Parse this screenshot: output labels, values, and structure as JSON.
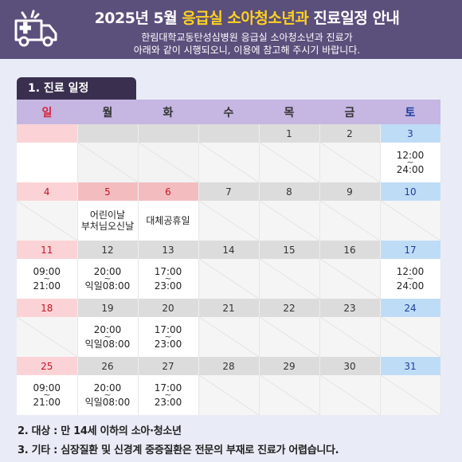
{
  "header": {
    "title_pre": "2025년 5월 ",
    "title_highlight": "응급실 소아청소년과",
    "title_post": " 진료일정 안내",
    "subtitle_line1": "한림대학교동탄성심병원 응급실 소아청소년과 진료가",
    "subtitle_line2": "아래와 같이 시행되오니, 이용에 참고해 주시기 바랍니다.",
    "icon": "ambulance-icon"
  },
  "section1": {
    "label": "1. 진료 일정"
  },
  "weekdays": [
    "일",
    "월",
    "화",
    "수",
    "목",
    "금",
    "토"
  ],
  "weeks": [
    {
      "dates": [
        "",
        "",
        "",
        "",
        "1",
        "2",
        "3"
      ],
      "cells": [
        {
          "type": "empty"
        },
        {
          "type": "gray"
        },
        {
          "type": "gray"
        },
        {
          "type": "slash"
        },
        {
          "type": "slash"
        },
        {
          "type": "slash"
        },
        {
          "type": "time",
          "start": "12:00",
          "end": "24:00"
        }
      ]
    },
    {
      "dates": [
        "4",
        "5",
        "6",
        "7",
        "8",
        "9",
        "10"
      ],
      "cells": [
        {
          "type": "slash"
        },
        {
          "type": "holiday",
          "lines": [
            "어린이날",
            "부처님오신날"
          ]
        },
        {
          "type": "holiday",
          "lines": [
            "대체공휴일"
          ]
        },
        {
          "type": "slash"
        },
        {
          "type": "slash"
        },
        {
          "type": "slash"
        },
        {
          "type": "slash"
        }
      ]
    },
    {
      "dates": [
        "11",
        "12",
        "13",
        "14",
        "15",
        "16",
        "17"
      ],
      "cells": [
        {
          "type": "time",
          "start": "09:00",
          "end": "21:00"
        },
        {
          "type": "time",
          "start": "20:00",
          "end": "익일08:00"
        },
        {
          "type": "time",
          "start": "17:00",
          "end": "23:00"
        },
        {
          "type": "slash"
        },
        {
          "type": "slash"
        },
        {
          "type": "slash"
        },
        {
          "type": "time",
          "start": "12:00",
          "end": "24:00"
        }
      ]
    },
    {
      "dates": [
        "18",
        "19",
        "20",
        "21",
        "22",
        "23",
        "24"
      ],
      "cells": [
        {
          "type": "slash"
        },
        {
          "type": "time",
          "start": "20:00",
          "end": "익일08:00"
        },
        {
          "type": "time",
          "start": "17:00",
          "end": "23:00"
        },
        {
          "type": "slash"
        },
        {
          "type": "slash"
        },
        {
          "type": "slash"
        },
        {
          "type": "slash"
        }
      ]
    },
    {
      "dates": [
        "25",
        "26",
        "27",
        "28",
        "29",
        "30",
        "31"
      ],
      "cells": [
        {
          "type": "time",
          "start": "09:00",
          "end": "21:00"
        },
        {
          "type": "time",
          "start": "20:00",
          "end": "익일08:00"
        },
        {
          "type": "time",
          "start": "17:00",
          "end": "23:00"
        },
        {
          "type": "slash"
        },
        {
          "type": "slash"
        },
        {
          "type": "slash"
        },
        {
          "type": "slash"
        }
      ]
    }
  ],
  "holiday_dates": [
    "5",
    "6"
  ],
  "tilde": "~",
  "footer": {
    "line2": "2. 대상 : 만 14세 이하의 소아·청소년",
    "line3": "3. 기타 : 심장질환 및 신경계 중증질환은 전문의 부재로 진료가 어렵습니다."
  },
  "colors": {
    "header_bg": "#5b4f7c",
    "highlight": "#ffd21f",
    "weekday_header": "#c5b6e2",
    "sunday": "#fbd3d6",
    "saturday": "#bfdcf6",
    "holiday_text": "#c41528"
  }
}
